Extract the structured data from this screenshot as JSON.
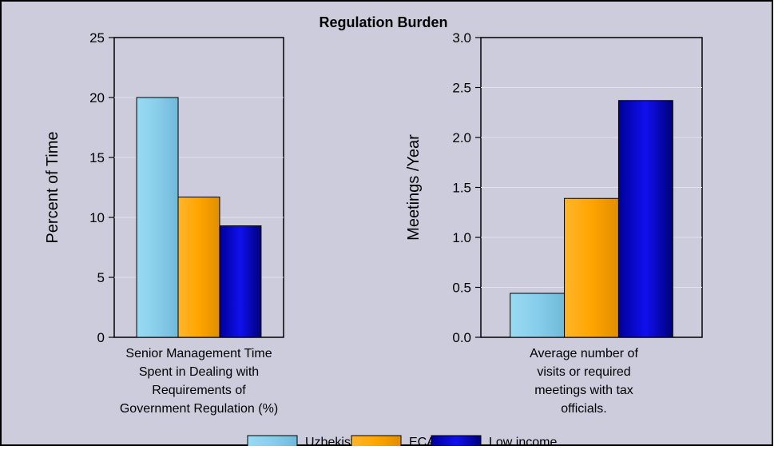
{
  "title": "Regulation Burden",
  "colors": {
    "background": "#CCCCDD",
    "plot_background": "#CCCCDD",
    "grid": "#E2E2EA",
    "series": [
      "#87CEEB",
      "#FFA500",
      "#0000CC"
    ]
  },
  "chart_data": [
    {
      "type": "bar",
      "ylabel": "Percent of Time",
      "category_label": [
        "Senior Management Time",
        "Spent in Dealing with",
        "Requirements of",
        "Government Regulation (%)"
      ],
      "ylim": [
        0,
        25
      ],
      "yticks": [
        0,
        5,
        10,
        15,
        20,
        25
      ],
      "ytick_labels": [
        "0",
        "5",
        "10",
        "15",
        "20",
        "25"
      ],
      "series": [
        {
          "name": "Uzbekistan",
          "value": 20.0
        },
        {
          "name": "ECA",
          "value": 11.7
        },
        {
          "name": "Low income",
          "value": 9.3
        }
      ]
    },
    {
      "type": "bar",
      "ylabel": "Meetings /Year",
      "category_label": [
        "Average number of",
        "visits or required",
        "meetings with tax",
        "officials."
      ],
      "ylim": [
        0,
        3.0
      ],
      "yticks": [
        0,
        0.5,
        1.0,
        1.5,
        2.0,
        2.5,
        3.0
      ],
      "ytick_labels": [
        "0.0",
        "0.5",
        "1.0",
        "1.5",
        "2.0",
        "2.5",
        "3.0"
      ],
      "series": [
        {
          "name": "Uzbekistan",
          "value": 0.44
        },
        {
          "name": "ECA",
          "value": 1.39
        },
        {
          "name": "Low income",
          "value": 2.37
        }
      ]
    }
  ],
  "legend": {
    "placement": "bottom",
    "items": [
      "Uzbekistan",
      "ECA",
      "Low income"
    ]
  }
}
